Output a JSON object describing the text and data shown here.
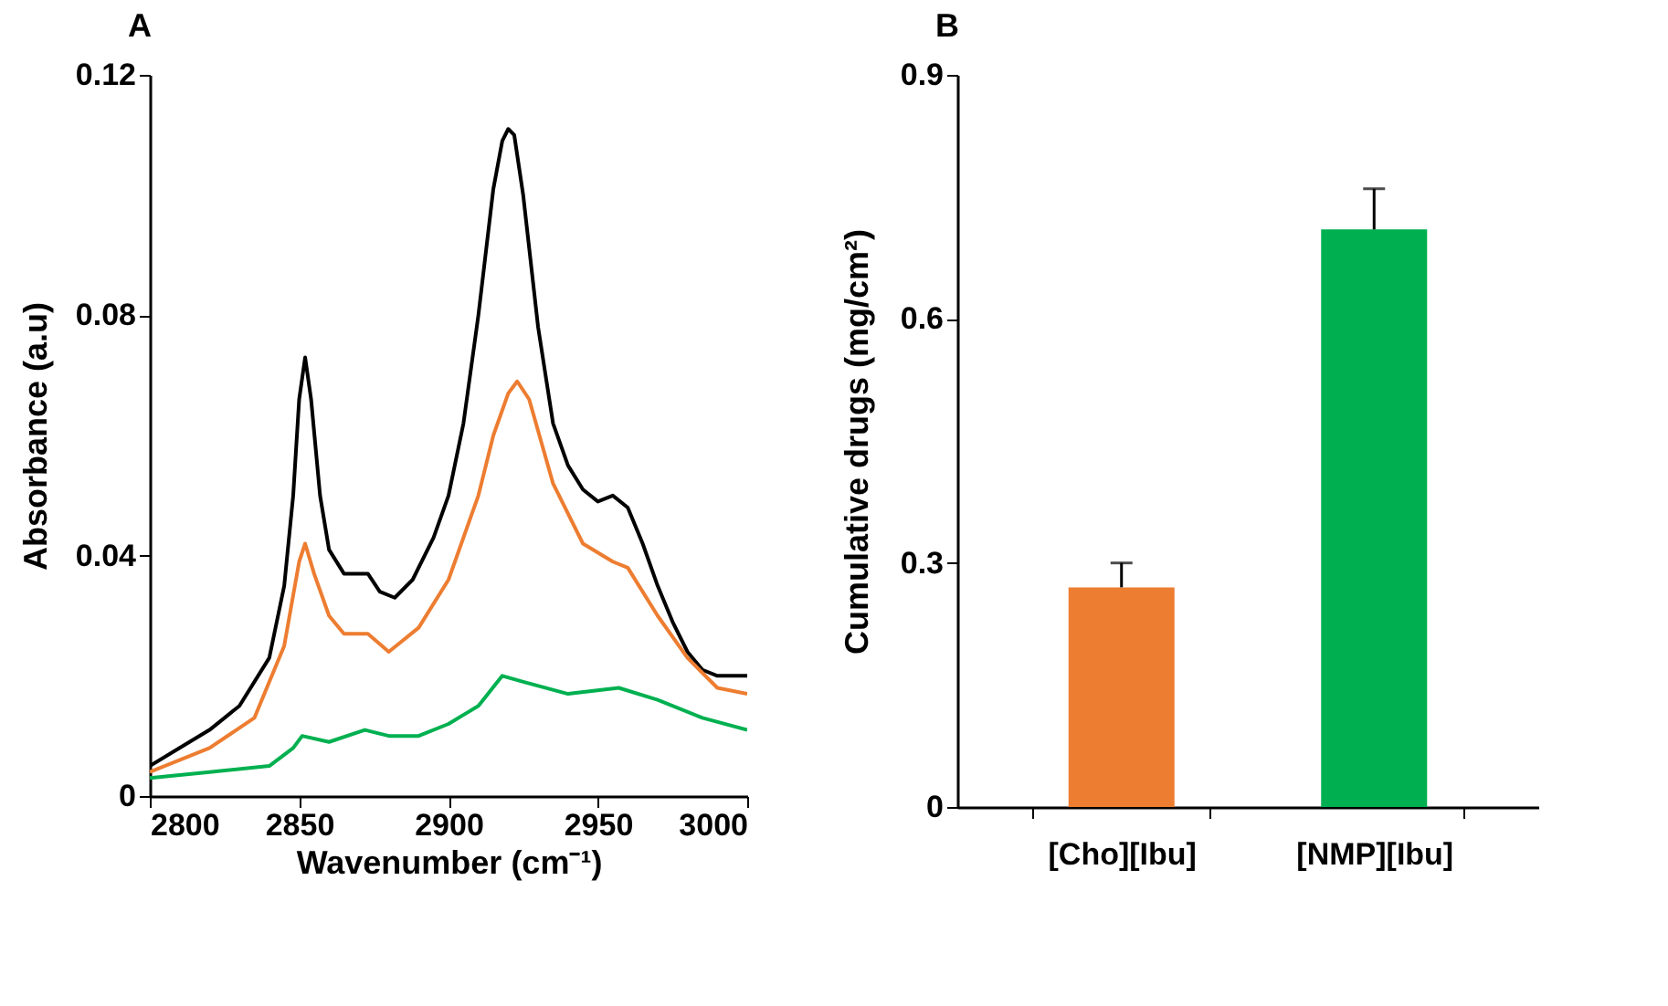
{
  "chart_data": [
    {
      "type": "line",
      "title": "A",
      "xlabel": "Wavenumber (cm⁻¹)",
      "ylabel": "Absorbance  (a.u)",
      "xlim": [
        2800,
        3000
      ],
      "xticks": [
        2800,
        2850,
        2900,
        2950,
        3000
      ],
      "ylim": [
        0,
        0.12
      ],
      "yticks": [
        0,
        0.04,
        0.08,
        0.12
      ],
      "grid": false,
      "legend": false,
      "marker": "none",
      "line_style": "solid",
      "series": [
        {
          "color": "#000000",
          "x": [
            2800,
            2810,
            2820,
            2830,
            2840,
            2845,
            2848,
            2850,
            2852,
            2854,
            2857,
            2860,
            2865,
            2870,
            2873,
            2877,
            2882,
            2888,
            2895,
            2900,
            2905,
            2910,
            2915,
            2918,
            2920,
            2922,
            2925,
            2930,
            2935,
            2940,
            2945,
            2950,
            2955,
            2960,
            2965,
            2970,
            2975,
            2980,
            2985,
            2990,
            3000
          ],
          "values": [
            0.005,
            0.008,
            0.011,
            0.015,
            0.023,
            0.035,
            0.05,
            0.066,
            0.073,
            0.066,
            0.05,
            0.041,
            0.037,
            0.037,
            0.037,
            0.034,
            0.033,
            0.036,
            0.043,
            0.05,
            0.062,
            0.08,
            0.101,
            0.109,
            0.111,
            0.11,
            0.1,
            0.078,
            0.062,
            0.055,
            0.051,
            0.049,
            0.05,
            0.048,
            0.042,
            0.035,
            0.029,
            0.024,
            0.021,
            0.02,
            0.02
          ]
        },
        {
          "color": "#ed7d31",
          "x": [
            2800,
            2820,
            2835,
            2845,
            2850,
            2852,
            2855,
            2860,
            2865,
            2870,
            2873,
            2880,
            2890,
            2900,
            2910,
            2915,
            2920,
            2923,
            2927,
            2935,
            2945,
            2955,
            2960,
            2970,
            2980,
            2990,
            3000
          ],
          "values": [
            0.004,
            0.008,
            0.013,
            0.025,
            0.039,
            0.042,
            0.037,
            0.03,
            0.027,
            0.027,
            0.027,
            0.024,
            0.028,
            0.036,
            0.05,
            0.06,
            0.067,
            0.069,
            0.066,
            0.052,
            0.042,
            0.039,
            0.038,
            0.03,
            0.023,
            0.018,
            0.017
          ]
        },
        {
          "color": "#00b050",
          "x": [
            2800,
            2820,
            2840,
            2848,
            2851,
            2860,
            2872,
            2880,
            2890,
            2900,
            2910,
            2918,
            2925,
            2940,
            2957,
            2970,
            2985,
            3000
          ],
          "values": [
            0.003,
            0.004,
            0.005,
            0.008,
            0.01,
            0.009,
            0.011,
            0.01,
            0.01,
            0.012,
            0.015,
            0.02,
            0.019,
            0.017,
            0.018,
            0.016,
            0.013,
            0.011
          ]
        }
      ]
    },
    {
      "type": "bar",
      "title": "B",
      "ylabel": "Cumulative drugs (mg/cm²)",
      "categories": [
        "[Cho][Ibu]",
        "[NMP][Ibu]"
      ],
      "values": [
        0.27,
        0.71
      ],
      "colors": [
        "#ed7d31",
        "#00b050"
      ],
      "errors": [
        [
          0.27,
          0.3
        ],
        [
          0.71,
          0.76
        ]
      ],
      "ylim": [
        0,
        0.9
      ],
      "yticks": [
        0,
        0.3,
        0.6,
        0.9
      ],
      "grid": false
    }
  ]
}
